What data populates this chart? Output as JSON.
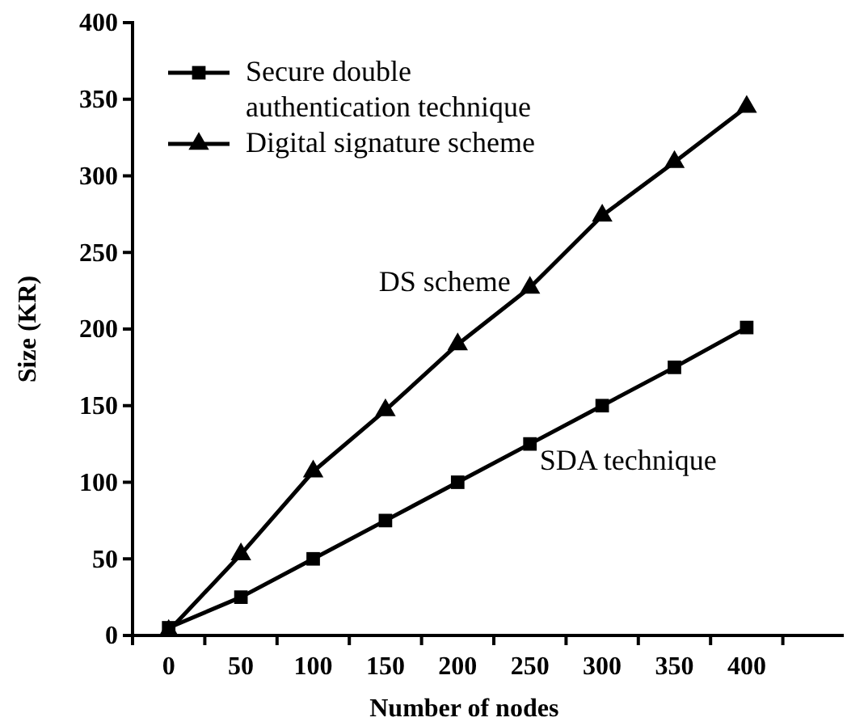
{
  "chart_data": {
    "type": "line",
    "xlabel": "Number of nodes",
    "ylabel": "Size (KR)",
    "categories": [
      "0",
      "50",
      "100",
      "150",
      "200",
      "250",
      "300",
      "350",
      "400"
    ],
    "ylim": [
      0,
      400
    ],
    "yticks": [
      0,
      50,
      100,
      150,
      200,
      250,
      300,
      350,
      400
    ],
    "legend": "top left",
    "line_style": "solid",
    "series": [
      {
        "name": "Secure double authentication technique",
        "color": "#000000",
        "marker": "square",
        "values": [
          5,
          25,
          50,
          75,
          100,
          125,
          150,
          175,
          201
        ]
      },
      {
        "name": "Digital signature scheme",
        "color": "#000000",
        "marker": "triangle",
        "values": [
          3,
          53,
          107,
          147,
          190,
          227,
          274,
          309,
          345
        ]
      }
    ],
    "annotations": [
      {
        "text": "DS scheme",
        "x": "250",
        "y": 227
      },
      {
        "text": "SDA technique",
        "x": "250",
        "y": 125
      }
    ]
  }
}
